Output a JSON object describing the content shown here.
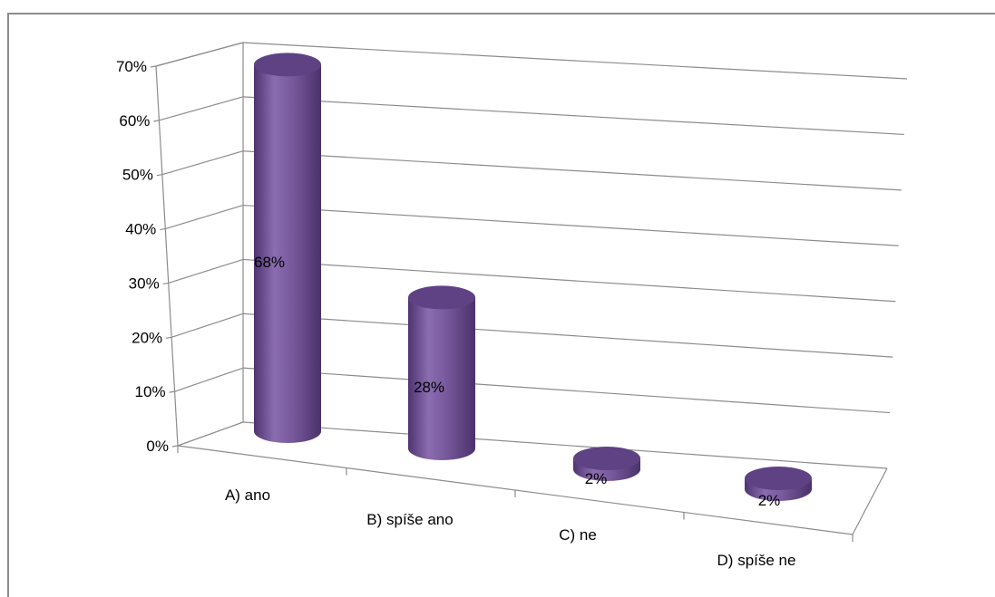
{
  "chart_data": {
    "type": "bar",
    "style": "3d-cylinder",
    "categories": [
      "A) ano",
      "B) spíše ano",
      "C) ne",
      "D) spíše ne"
    ],
    "values": [
      68,
      28,
      2,
      2
    ],
    "value_labels": [
      "68%",
      "28%",
      "2%",
      "2%"
    ],
    "y_ticks": [
      "0%",
      "10%",
      "20%",
      "30%",
      "40%",
      "50%",
      "60%",
      "70%"
    ],
    "ylim": [
      0,
      70
    ],
    "unit": "%",
    "grid": true,
    "legend": "none",
    "title": "",
    "xlabel": "",
    "ylabel": "",
    "colors": {
      "bar": "#7a5a9e",
      "bar_dark": "#4e3470",
      "bar_light": "#a58bc4",
      "bar_top": "#5e4284",
      "grid": "#8c8c8c",
      "axis": "#8c8c8c",
      "frame": "#8c8c8c"
    }
  }
}
